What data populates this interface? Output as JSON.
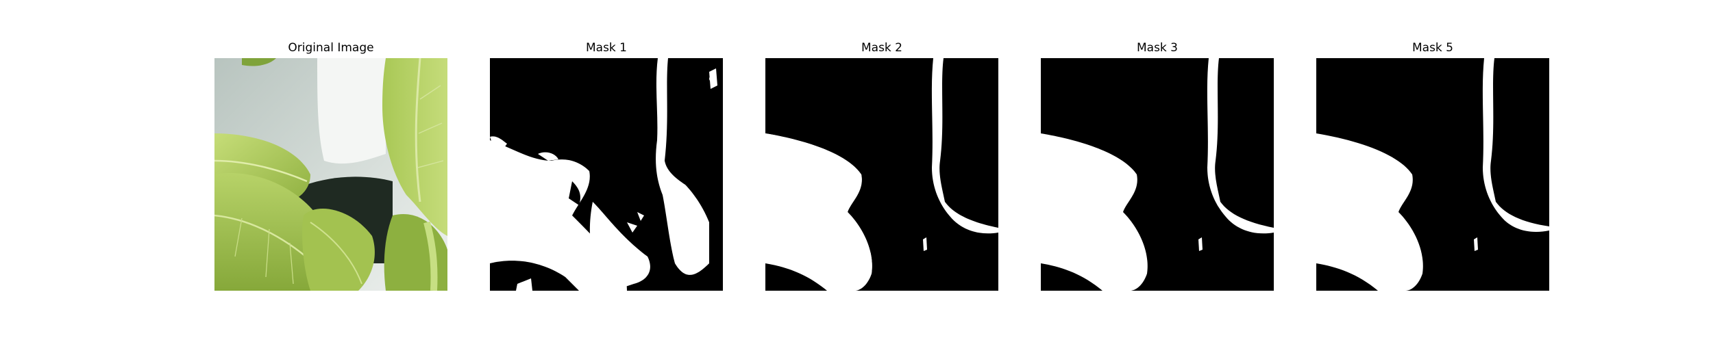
{
  "panels": [
    {
      "title": "Original Image"
    },
    {
      "title": "Mask 1"
    },
    {
      "title": "Mask 2"
    },
    {
      "title": "Mask 3"
    },
    {
      "title": "Mask 5"
    }
  ],
  "colors": {
    "background": "#ffffff",
    "mask_foreground": "#ffffff",
    "mask_background": "#000000",
    "leaf_light": "#b9d36a",
    "leaf_mid": "#9fbf4c",
    "leaf_dark": "#6f8f2e",
    "wall": "#c8d0cc"
  }
}
